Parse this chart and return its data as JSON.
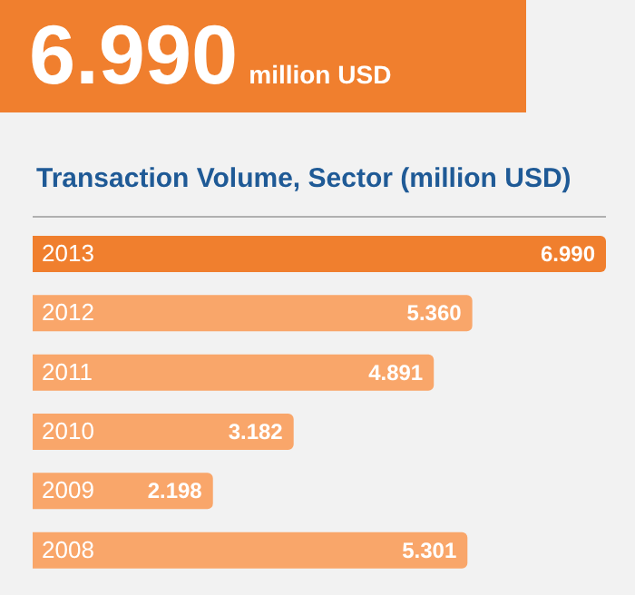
{
  "chart_data": {
    "type": "bar",
    "orientation": "horizontal",
    "title": "Transaction Volume, Sector (million USD)",
    "annotations": [
      "6.990",
      "million USD"
    ],
    "categories": [
      "2013",
      "2012",
      "2011",
      "2010",
      "2009",
      "2008"
    ],
    "values": [
      6.99,
      5.36,
      4.891,
      3.182,
      2.198,
      5.301
    ],
    "value_labels": [
      "6.990",
      "5.360",
      "4.891",
      "3.182",
      "2.198",
      "5.301"
    ],
    "colors": [
      "#f07f2e",
      "#f9a66a",
      "#f9a66a",
      "#f9a66a",
      "#f9a66a",
      "#f9a66a"
    ]
  }
}
